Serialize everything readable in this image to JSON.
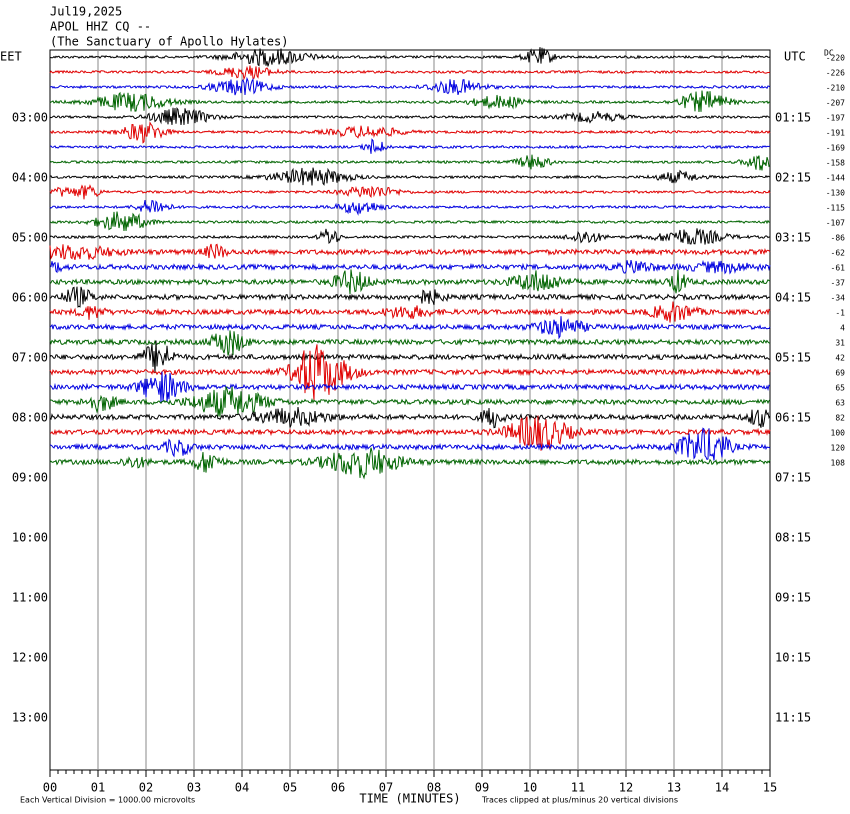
{
  "header": {
    "date": "Jul19,2025",
    "station": "APOL HHZ CQ --",
    "site": "(The Sanctuary of Apollo Hylates)"
  },
  "left_label": "EET",
  "right_label": "UTC",
  "dc_label": "DC",
  "left_times": [
    "03:00",
    "04:00",
    "05:00",
    "06:00",
    "07:00",
    "08:00",
    "09:00",
    "10:00",
    "11:00",
    "12:00",
    "13:00"
  ],
  "right_times": [
    "01:15",
    "02:15",
    "03:15",
    "04:15",
    "05:15",
    "06:15",
    "07:15",
    "08:15",
    "09:15",
    "10:15",
    "11:15"
  ],
  "dc_offsets": [
    -220,
    -226,
    -210,
    -207,
    -197,
    -191,
    -169,
    -158,
    -144,
    -130,
    -115,
    -107,
    -86,
    -62,
    -61,
    -37,
    -34,
    -1,
    4,
    31,
    42,
    69,
    65,
    63,
    82,
    100,
    120,
    108
  ],
  "x_axis": {
    "title": "TIME (MINUTES)",
    "ticks": [
      "00",
      "01",
      "02",
      "03",
      "04",
      "05",
      "06",
      "07",
      "08",
      "09",
      "10",
      "11",
      "12",
      "13",
      "14",
      "15"
    ]
  },
  "footer": {
    "left": "Each Vertical Division = 1000.00 microvolts",
    "right": "Traces clipped at plus/minus 20 vertical divisions"
  }
}
